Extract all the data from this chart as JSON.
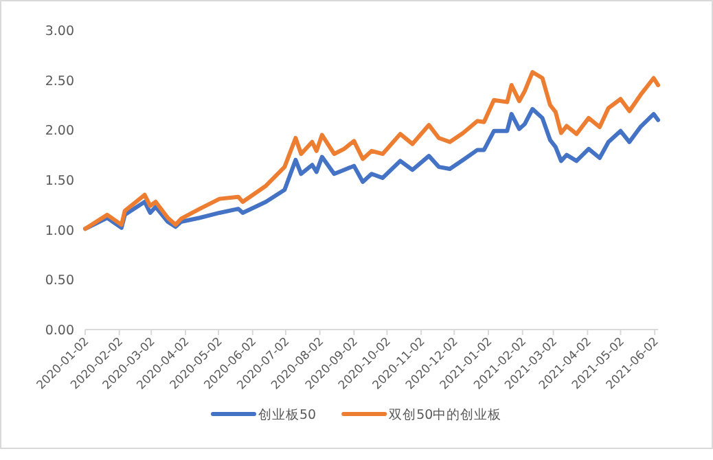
{
  "chart_data": {
    "type": "line",
    "legend": "bottom",
    "x": [
      "2020-01-02",
      "2020-01-22",
      "2020-02-04",
      "2020-02-07",
      "2020-02-25",
      "2020-03-01",
      "2020-03-06",
      "2020-03-17",
      "2020-03-24",
      "2020-03-29",
      "2020-04-15",
      "2020-05-03",
      "2020-05-20",
      "2020-05-24",
      "2020-06-14",
      "2020-07-01",
      "2020-07-11",
      "2020-07-16",
      "2020-07-26",
      "2020-07-30",
      "2020-08-04",
      "2020-08-15",
      "2020-08-24",
      "2020-09-02",
      "2020-09-10",
      "2020-09-18",
      "2020-09-28",
      "2020-10-14",
      "2020-10-25",
      "2020-11-09",
      "2020-11-18",
      "2020-11-28",
      "2020-12-10",
      "2020-12-23",
      "2020-12-29",
      "2021-01-07",
      "2021-01-19",
      "2021-01-23",
      "2021-01-30",
      "2021-02-04",
      "2021-02-11",
      "2021-02-20",
      "2021-02-27",
      "2021-03-04",
      "2021-03-09",
      "2021-03-14",
      "2021-03-23",
      "2021-04-03",
      "2021-04-13",
      "2021-04-21",
      "2021-05-02",
      "2021-05-10",
      "2021-05-20",
      "2021-06-01",
      "2021-06-05"
    ],
    "series": [
      {
        "name": "创业板50",
        "color": "#4472c4",
        "values": [
          1.01,
          1.12,
          1.02,
          1.15,
          1.28,
          1.17,
          1.23,
          1.08,
          1.03,
          1.08,
          1.12,
          1.17,
          1.21,
          1.17,
          1.28,
          1.4,
          1.7,
          1.56,
          1.65,
          1.58,
          1.73,
          1.56,
          1.6,
          1.64,
          1.48,
          1.56,
          1.52,
          1.69,
          1.6,
          1.74,
          1.63,
          1.61,
          1.7,
          1.8,
          1.8,
          1.99,
          1.99,
          2.16,
          2.01,
          2.06,
          2.21,
          2.12,
          1.9,
          1.83,
          1.69,
          1.75,
          1.69,
          1.81,
          1.72,
          1.88,
          1.99,
          1.88,
          2.03,
          2.16,
          2.1
        ]
      },
      {
        "name": "双创50中的创业板",
        "color": "#ed7d31",
        "values": [
          1.01,
          1.15,
          1.05,
          1.19,
          1.35,
          1.24,
          1.28,
          1.12,
          1.05,
          1.11,
          1.21,
          1.31,
          1.33,
          1.28,
          1.44,
          1.63,
          1.92,
          1.76,
          1.88,
          1.79,
          1.95,
          1.76,
          1.81,
          1.89,
          1.71,
          1.79,
          1.76,
          1.96,
          1.86,
          2.05,
          1.92,
          1.88,
          1.97,
          2.09,
          2.08,
          2.3,
          2.28,
          2.45,
          2.29,
          2.39,
          2.58,
          2.52,
          2.25,
          2.18,
          1.97,
          2.04,
          1.96,
          2.12,
          2.03,
          2.22,
          2.31,
          2.19,
          2.35,
          2.52,
          2.45
        ]
      }
    ],
    "xlim": [
      "2020-01-02",
      "2021-06-05"
    ],
    "xticks": [
      "2020-01-02",
      "2020-02-02",
      "2020-03-02",
      "2020-04-02",
      "2020-05-02",
      "2020-06-02",
      "2020-07-02",
      "2020-08-02",
      "2020-09-02",
      "2020-10-02",
      "2020-11-02",
      "2020-12-02",
      "2021-01-02",
      "2021-02-02",
      "2021-03-02",
      "2021-04-02",
      "2021-05-02",
      "2021-06-02"
    ],
    "ylim": [
      0,
      3
    ],
    "yticks": [
      {
        "value": 0,
        "label": "0.00"
      },
      {
        "value": 0.5,
        "label": "0.50"
      },
      {
        "value": 1,
        "label": "1.00"
      },
      {
        "value": 1.5,
        "label": "1.50"
      },
      {
        "value": 2,
        "label": "2.00"
      },
      {
        "value": 2.5,
        "label": "2.50"
      },
      {
        "value": 3,
        "label": "3.00"
      }
    ]
  }
}
